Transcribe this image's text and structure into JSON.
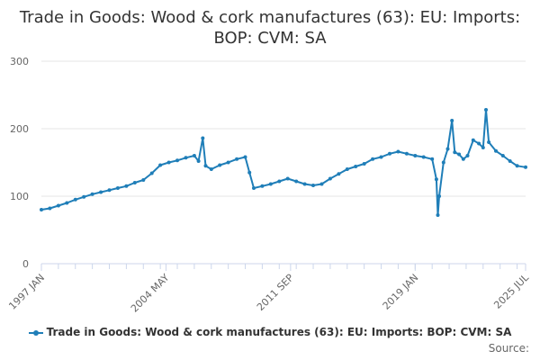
{
  "chart_data": {
    "type": "line",
    "title": "Trade in Goods: Wood & cork manufactures (63): EU: Imports: BOP: CVM: SA",
    "xlabel": "",
    "ylabel": "",
    "ylim": [
      0,
      300
    ],
    "yticks": [
      0,
      100,
      200,
      300
    ],
    "xticks": [
      "1997 JAN",
      "2004 MAY",
      "2011 SEP",
      "2019 JAN",
      "2025 JUL"
    ],
    "grid": true,
    "legend_position": "bottom",
    "series": [
      {
        "name": "Trade in Goods: Wood & cork manufactures (63): EU: Imports: BOP: CVM: SA",
        "color": "#1f7eb8",
        "points": [
          [
            "1997-01",
            80
          ],
          [
            "1997-07",
            82
          ],
          [
            "1998-01",
            86
          ],
          [
            "1998-07",
            90
          ],
          [
            "1999-01",
            95
          ],
          [
            "1999-07",
            99
          ],
          [
            "2000-01",
            103
          ],
          [
            "2000-07",
            106
          ],
          [
            "2001-01",
            109
          ],
          [
            "2001-07",
            112
          ],
          [
            "2002-01",
            115
          ],
          [
            "2002-07",
            120
          ],
          [
            "2003-01",
            124
          ],
          [
            "2003-07",
            134
          ],
          [
            "2004-01",
            146
          ],
          [
            "2004-07",
            150
          ],
          [
            "2005-01",
            153
          ],
          [
            "2005-07",
            157
          ],
          [
            "2006-01",
            160
          ],
          [
            "2006-04",
            152
          ],
          [
            "2006-07",
            186
          ],
          [
            "2006-09",
            145
          ],
          [
            "2007-01",
            140
          ],
          [
            "2007-07",
            146
          ],
          [
            "2008-01",
            150
          ],
          [
            "2008-07",
            155
          ],
          [
            "2009-01",
            158
          ],
          [
            "2009-04",
            135
          ],
          [
            "2009-07",
            112
          ],
          [
            "2010-01",
            115
          ],
          [
            "2010-07",
            118
          ],
          [
            "2011-01",
            122
          ],
          [
            "2011-07",
            126
          ],
          [
            "2012-01",
            122
          ],
          [
            "2012-07",
            118
          ],
          [
            "2013-01",
            116
          ],
          [
            "2013-07",
            118
          ],
          [
            "2014-01",
            126
          ],
          [
            "2014-07",
            133
          ],
          [
            "2015-01",
            140
          ],
          [
            "2015-07",
            144
          ],
          [
            "2016-01",
            148
          ],
          [
            "2016-07",
            155
          ],
          [
            "2017-01",
            158
          ],
          [
            "2017-07",
            163
          ],
          [
            "2018-01",
            166
          ],
          [
            "2018-07",
            163
          ],
          [
            "2019-01",
            160
          ],
          [
            "2019-07",
            158
          ],
          [
            "2020-01",
            155
          ],
          [
            "2020-04",
            125
          ],
          [
            "2020-05",
            72
          ],
          [
            "2020-06",
            100
          ],
          [
            "2020-09",
            150
          ],
          [
            "2020-12",
            170
          ],
          [
            "2021-03",
            212
          ],
          [
            "2021-05",
            165
          ],
          [
            "2021-08",
            162
          ],
          [
            "2021-11",
            155
          ],
          [
            "2022-02",
            160
          ],
          [
            "2022-06",
            183
          ],
          [
            "2022-10",
            178
          ],
          [
            "2023-01",
            172
          ],
          [
            "2023-03",
            228
          ],
          [
            "2023-05",
            180
          ],
          [
            "2023-10",
            167
          ],
          [
            "2024-03",
            160
          ],
          [
            "2024-08",
            152
          ],
          [
            "2025-01",
            145
          ],
          [
            "2025-07",
            143
          ]
        ]
      }
    ]
  },
  "legend": {
    "label": "Trade in Goods: Wood & cork manufactures (63): EU: Imports: BOP: CVM: SA"
  },
  "credit": "Source:"
}
